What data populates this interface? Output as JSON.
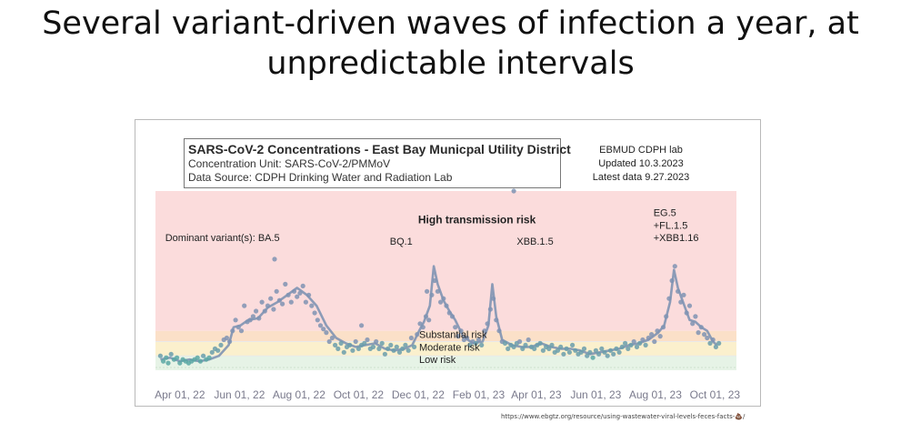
{
  "title": {
    "line1": "Several variant-driven waves of infection a year, at",
    "line2": "unpredictable intervals"
  },
  "info_box": {
    "title": "SARS-CoV-2 Concentrations - East Bay Municpal Utility District",
    "unit": "Concentration Unit:  SARS-CoV-2/PMMoV",
    "source": "Data Source: CDPH Drinking Water and Radiation Lab"
  },
  "lab_note": {
    "line1": "EBMUD CDPH lab",
    "line2": "Updated 10.3.2023",
    "line3": "Latest data 9.27.2023"
  },
  "source_url": "https://www.ebgtz.org/resource/using-wastewater-viral-levels-feces-facts-💩/",
  "chart_data": {
    "type": "scatter",
    "title": "SARS-CoV-2 Concentrations - East Bay Municpal Utility District",
    "x_unit": "days since Apr 01, 22",
    "xlim": [
      -25,
      570
    ],
    "ylim": [
      0,
      100
    ],
    "tick_labels": [
      "Apr 01, 22",
      "Jun 01, 22",
      "Aug 01, 22",
      "Oct 01, 22",
      "Dec 01, 22",
      "Feb 01, 23",
      "Apr 01, 23",
      "Jun 01, 23",
      "Aug 01, 23",
      "Oct 01, 23"
    ],
    "tick_values": [
      0,
      61,
      122,
      183,
      244,
      306,
      365,
      426,
      487,
      548
    ],
    "risk_bands": [
      {
        "name": "Low risk",
        "from": 0,
        "to": 8,
        "color": "#e6f3e6"
      },
      {
        "name": "Moderate risk",
        "from": 8,
        "to": 16,
        "color": "#fbf0cd"
      },
      {
        "name": "Substantial risk",
        "from": 16,
        "to": 22,
        "color": "#fbe0c8"
      },
      {
        "name": "High transmission risk",
        "from": 22,
        "to": 100,
        "color": "#fbdcdc"
      }
    ],
    "band_labels": [
      {
        "text": "High transmission risk",
        "x": 244,
        "y": 82
      },
      {
        "text": "Substantial risk",
        "x": 245,
        "y": 18
      },
      {
        "text": "Moderate risk",
        "x": 245,
        "y": 11
      },
      {
        "text": "Low risk",
        "x": 245,
        "y": 4
      }
    ],
    "annotations": [
      {
        "text": "Dominant variant(s): BA.5",
        "x": -15,
        "y": 72
      },
      {
        "text": "BQ.1",
        "x": 215,
        "y": 70
      },
      {
        "text": "XBB.1.5",
        "x": 345,
        "y": 70
      },
      {
        "text": "EG.5",
        "x": 485,
        "y": 86
      },
      {
        "text": "+FL.1.5",
        "x": 485,
        "y": 79
      },
      {
        "text": "+XBB1.16",
        "x": 485,
        "y": 72
      }
    ],
    "trend": [
      [
        -20,
        6
      ],
      [
        -10,
        7
      ],
      [
        0,
        5
      ],
      [
        10,
        6
      ],
      [
        20,
        5
      ],
      [
        30,
        6
      ],
      [
        40,
        8
      ],
      [
        50,
        14
      ],
      [
        55,
        24
      ],
      [
        62,
        25
      ],
      [
        70,
        28
      ],
      [
        80,
        29
      ],
      [
        90,
        35
      ],
      [
        100,
        38
      ],
      [
        110,
        42
      ],
      [
        120,
        46
      ],
      [
        125,
        44
      ],
      [
        130,
        42
      ],
      [
        140,
        36
      ],
      [
        150,
        25
      ],
      [
        160,
        18
      ],
      [
        170,
        15
      ],
      [
        180,
        13
      ],
      [
        190,
        14
      ],
      [
        200,
        15
      ],
      [
        210,
        12
      ],
      [
        220,
        11
      ],
      [
        230,
        12
      ],
      [
        238,
        14
      ],
      [
        245,
        22
      ],
      [
        250,
        27
      ],
      [
        256,
        36
      ],
      [
        260,
        58
      ],
      [
        264,
        48
      ],
      [
        270,
        39
      ],
      [
        276,
        33
      ],
      [
        282,
        28
      ],
      [
        290,
        19
      ],
      [
        300,
        15
      ],
      [
        310,
        16
      ],
      [
        316,
        25
      ],
      [
        320,
        48
      ],
      [
        324,
        30
      ],
      [
        330,
        17
      ],
      [
        340,
        14
      ],
      [
        350,
        13
      ],
      [
        360,
        13
      ],
      [
        370,
        15
      ],
      [
        380,
        13
      ],
      [
        390,
        12
      ],
      [
        400,
        12
      ],
      [
        410,
        11
      ],
      [
        420,
        9
      ],
      [
        430,
        10
      ],
      [
        440,
        11
      ],
      [
        450,
        12
      ],
      [
        460,
        14
      ],
      [
        470,
        15
      ],
      [
        480,
        17
      ],
      [
        490,
        21
      ],
      [
        496,
        25
      ],
      [
        502,
        38
      ],
      [
        506,
        56
      ],
      [
        510,
        46
      ],
      [
        516,
        37
      ],
      [
        522,
        28
      ],
      [
        528,
        27
      ],
      [
        534,
        24
      ],
      [
        540,
        22
      ],
      [
        546,
        16
      ],
      [
        550,
        14
      ]
    ],
    "points": [
      [
        -20,
        8
      ],
      [
        -17,
        5
      ],
      [
        -14,
        7
      ],
      [
        -12,
        4
      ],
      [
        -9,
        9
      ],
      [
        -6,
        6
      ],
      [
        -3,
        7
      ],
      [
        0,
        4
      ],
      [
        3,
        6
      ],
      [
        6,
        5
      ],
      [
        9,
        4
      ],
      [
        12,
        5
      ],
      [
        15,
        6
      ],
      [
        18,
        7
      ],
      [
        21,
        5
      ],
      [
        24,
        8
      ],
      [
        27,
        6
      ],
      [
        30,
        7
      ],
      [
        33,
        10
      ],
      [
        36,
        12
      ],
      [
        39,
        11
      ],
      [
        42,
        14
      ],
      [
        45,
        17
      ],
      [
        48,
        18
      ],
      [
        51,
        16
      ],
      [
        54,
        22
      ],
      [
        57,
        28
      ],
      [
        60,
        24
      ],
      [
        63,
        22
      ],
      [
        66,
        36
      ],
      [
        69,
        27
      ],
      [
        72,
        28
      ],
      [
        75,
        30
      ],
      [
        78,
        33
      ],
      [
        81,
        29
      ],
      [
        84,
        38
      ],
      [
        87,
        33
      ],
      [
        90,
        36
      ],
      [
        93,
        40
      ],
      [
        96,
        34
      ],
      [
        99,
        44
      ],
      [
        102,
        39
      ],
      [
        105,
        37
      ],
      [
        108,
        48
      ],
      [
        111,
        42
      ],
      [
        114,
        38
      ],
      [
        117,
        44
      ],
      [
        120,
        41
      ],
      [
        123,
        43
      ],
      [
        126,
        47
      ],
      [
        129,
        38
      ],
      [
        132,
        42
      ],
      [
        135,
        36
      ],
      [
        138,
        32
      ],
      [
        141,
        28
      ],
      [
        144,
        25
      ],
      [
        147,
        23
      ],
      [
        150,
        21
      ],
      [
        153,
        16
      ],
      [
        156,
        18
      ],
      [
        159,
        14
      ],
      [
        162,
        12
      ],
      [
        165,
        15
      ],
      [
        168,
        10
      ],
      [
        171,
        13
      ],
      [
        174,
        14
      ],
      [
        177,
        11
      ],
      [
        180,
        16
      ],
      [
        183,
        12
      ],
      [
        186,
        14
      ],
      [
        189,
        15
      ],
      [
        192,
        17
      ],
      [
        195,
        12
      ],
      [
        198,
        13
      ],
      [
        201,
        16
      ],
      [
        204,
        12
      ],
      [
        207,
        15
      ],
      [
        210,
        9
      ],
      [
        213,
        12
      ],
      [
        216,
        14
      ],
      [
        219,
        11
      ],
      [
        222,
        13
      ],
      [
        225,
        10
      ],
      [
        228,
        12
      ],
      [
        231,
        14
      ],
      [
        234,
        11
      ],
      [
        237,
        18
      ],
      [
        240,
        13
      ],
      [
        243,
        20
      ],
      [
        246,
        26
      ],
      [
        249,
        24
      ],
      [
        252,
        30
      ],
      [
        255,
        28
      ],
      [
        258,
        42
      ],
      [
        261,
        50
      ],
      [
        264,
        44
      ],
      [
        267,
        38
      ],
      [
        270,
        40
      ],
      [
        273,
        36
      ],
      [
        276,
        32
      ],
      [
        279,
        30
      ],
      [
        282,
        24
      ],
      [
        285,
        19
      ],
      [
        288,
        22
      ],
      [
        291,
        17
      ],
      [
        294,
        18
      ],
      [
        297,
        14
      ],
      [
        300,
        16
      ],
      [
        303,
        15
      ],
      [
        306,
        17
      ],
      [
        309,
        14
      ],
      [
        312,
        22
      ],
      [
        315,
        26
      ],
      [
        318,
        34
      ],
      [
        321,
        40
      ],
      [
        324,
        28
      ],
      [
        327,
        22
      ],
      [
        330,
        16
      ],
      [
        333,
        15
      ],
      [
        336,
        12
      ],
      [
        339,
        14
      ],
      [
        342,
        13
      ],
      [
        345,
        15
      ],
      [
        348,
        16
      ],
      [
        351,
        12
      ],
      [
        354,
        14
      ],
      [
        357,
        17
      ],
      [
        360,
        13
      ],
      [
        363,
        12
      ],
      [
        366,
        14
      ],
      [
        369,
        15
      ],
      [
        372,
        11
      ],
      [
        375,
        13
      ],
      [
        378,
        12
      ],
      [
        381,
        14
      ],
      [
        384,
        10
      ],
      [
        387,
        11
      ],
      [
        390,
        13
      ],
      [
        393,
        9
      ],
      [
        396,
        12
      ],
      [
        399,
        10
      ],
      [
        402,
        14
      ],
      [
        405,
        11
      ],
      [
        408,
        9
      ],
      [
        411,
        10
      ],
      [
        414,
        12
      ],
      [
        417,
        8
      ],
      [
        420,
        10
      ],
      [
        423,
        7
      ],
      [
        426,
        11
      ],
      [
        429,
        9
      ],
      [
        432,
        12
      ],
      [
        435,
        10
      ],
      [
        438,
        8
      ],
      [
        441,
        11
      ],
      [
        444,
        9
      ],
      [
        447,
        12
      ],
      [
        450,
        10
      ],
      [
        453,
        13
      ],
      [
        456,
        15
      ],
      [
        459,
        12
      ],
      [
        462,
        14
      ],
      [
        465,
        16
      ],
      [
        468,
        13
      ],
      [
        471,
        15
      ],
      [
        474,
        17
      ],
      [
        477,
        14
      ],
      [
        480,
        18
      ],
      [
        483,
        20
      ],
      [
        486,
        16
      ],
      [
        489,
        22
      ],
      [
        492,
        19
      ],
      [
        495,
        24
      ],
      [
        498,
        30
      ],
      [
        501,
        40
      ],
      [
        504,
        50
      ],
      [
        507,
        58
      ],
      [
        510,
        44
      ],
      [
        513,
        38
      ],
      [
        516,
        42
      ],
      [
        519,
        32
      ],
      [
        522,
        36
      ],
      [
        525,
        26
      ],
      [
        528,
        30
      ],
      [
        531,
        21
      ],
      [
        534,
        24
      ],
      [
        537,
        20
      ],
      [
        540,
        18
      ],
      [
        543,
        15
      ],
      [
        546,
        17
      ],
      [
        549,
        13
      ],
      [
        552,
        15
      ],
      [
        342,
        100
      ],
      [
        97,
        62
      ],
      [
        253,
        44
      ],
      [
        186,
        25
      ]
    ]
  }
}
